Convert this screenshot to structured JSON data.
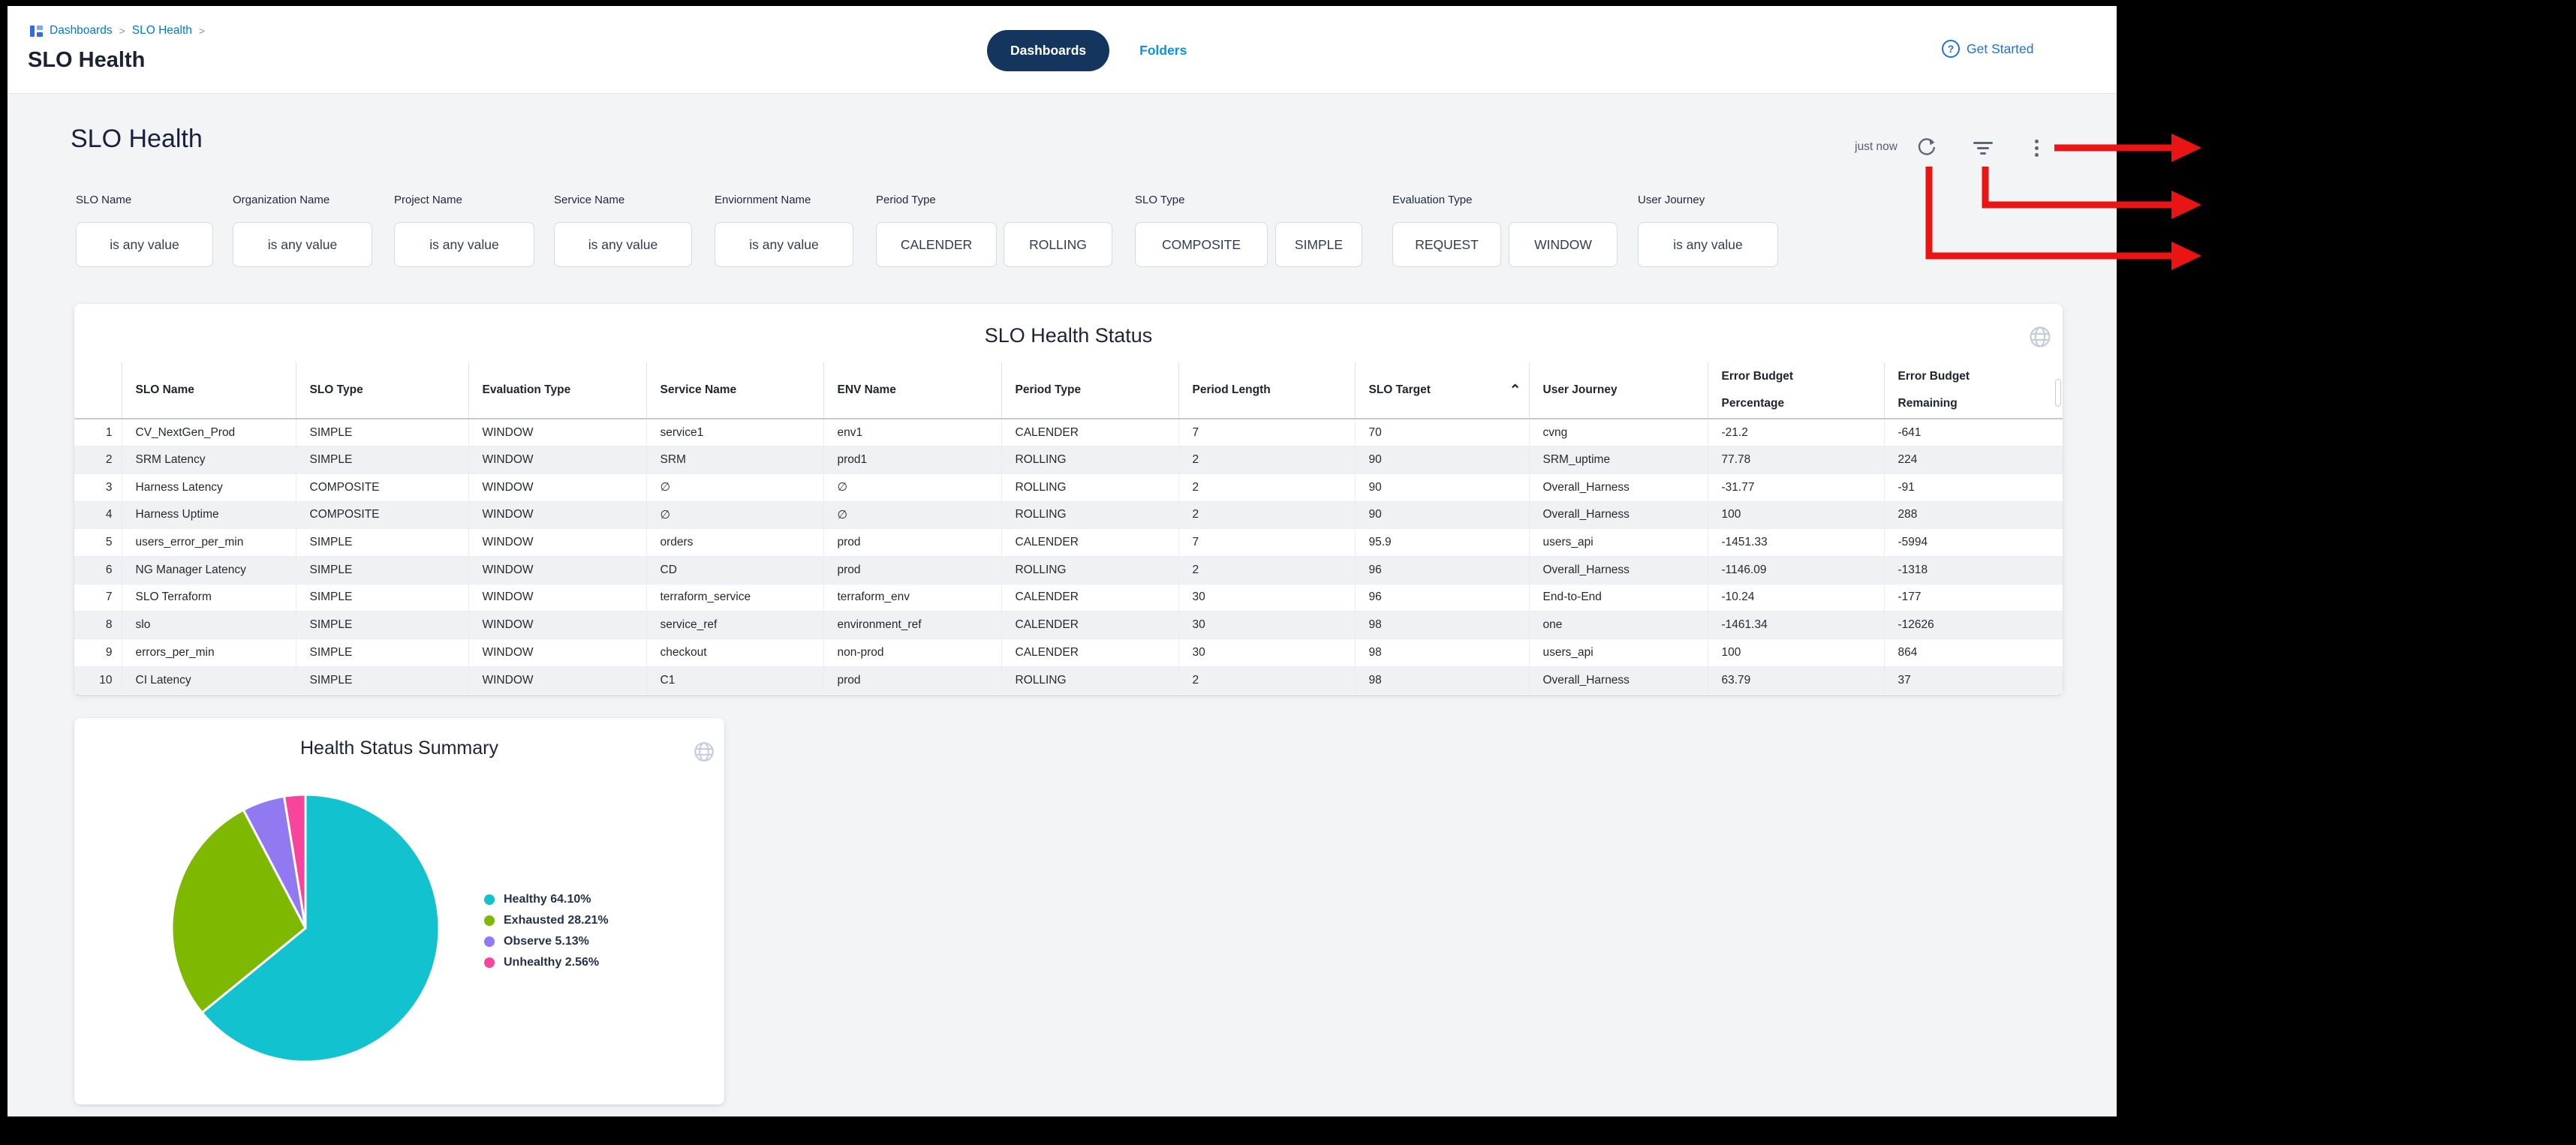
{
  "header": {
    "breadcrumb": [
      "Dashboards",
      "SLO Health"
    ],
    "breadcrumb_separator": ">",
    "title": "SLO Health",
    "tabs": [
      "Dashboards",
      "Folders"
    ],
    "help_glyph": "?",
    "get_started": "Get Started"
  },
  "toolbar": {
    "dashboard_title": "SLO Health",
    "refreshed_label": "just now"
  },
  "filters": [
    {
      "label": "SLO Name",
      "value": "is any value"
    },
    {
      "label": "Organization Name",
      "value": "is any value"
    },
    {
      "label": "Project Name",
      "value": "is any value"
    },
    {
      "label": "Service Name",
      "value": "is any value"
    },
    {
      "label": "Enviornment Name",
      "value": "is any value"
    },
    {
      "label": "Period Type",
      "options": [
        "CALENDER",
        "ROLLING"
      ]
    },
    {
      "label": "SLO Type",
      "options": [
        "COMPOSITE",
        "SIMPLE"
      ]
    },
    {
      "label": "Evaluation Type",
      "options": [
        "REQUEST",
        "WINDOW"
      ]
    },
    {
      "label": "User Journey",
      "value": "is any value"
    }
  ],
  "table": {
    "title": "SLO Health Status",
    "sort_caret": "⌃",
    "columns": [
      {
        "label": ""
      },
      {
        "label": "SLO Name"
      },
      {
        "label": "SLO Type"
      },
      {
        "label": "Evaluation Type"
      },
      {
        "label": "Service Name"
      },
      {
        "label": "ENV Name"
      },
      {
        "label": "Period Type"
      },
      {
        "label": "Period Length"
      },
      {
        "label": "SLO Target",
        "sorted": "asc"
      },
      {
        "label": "User Journey"
      },
      {
        "label": "Error Budget",
        "label2": "Percentage"
      },
      {
        "label": "Error Budget",
        "label2": "Remaining"
      }
    ],
    "rows": [
      [
        "1",
        "CV_NextGen_Prod",
        "SIMPLE",
        "WINDOW",
        "service1",
        "env1",
        "CALENDER",
        "7",
        "70",
        "cvng",
        "-21.2",
        "-641"
      ],
      [
        "2",
        "SRM Latency",
        "SIMPLE",
        "WINDOW",
        "SRM",
        "prod1",
        "ROLLING",
        "2",
        "90",
        "SRM_uptime",
        "77.78",
        "224"
      ],
      [
        "3",
        "Harness Latency",
        "COMPOSITE",
        "WINDOW",
        "∅",
        "∅",
        "ROLLING",
        "2",
        "90",
        "Overall_Harness",
        "-31.77",
        "-91"
      ],
      [
        "4",
        "Harness Uptime",
        "COMPOSITE",
        "WINDOW",
        "∅",
        "∅",
        "ROLLING",
        "2",
        "90",
        "Overall_Harness",
        "100",
        "288"
      ],
      [
        "5",
        "users_error_per_min",
        "SIMPLE",
        "WINDOW",
        "orders",
        "prod",
        "CALENDER",
        "7",
        "95.9",
        "users_api",
        "-1451.33",
        "-5994"
      ],
      [
        "6",
        "NG Manager Latency",
        "SIMPLE",
        "WINDOW",
        "CD",
        "prod",
        "ROLLING",
        "2",
        "96",
        "Overall_Harness",
        "-1146.09",
        "-1318"
      ],
      [
        "7",
        "SLO Terraform",
        "SIMPLE",
        "WINDOW",
        "terraform_service",
        "terraform_env",
        "CALENDER",
        "30",
        "96",
        "End-to-End",
        "-10.24",
        "-177"
      ],
      [
        "8",
        "slo",
        "SIMPLE",
        "WINDOW",
        "service_ref",
        "environment_ref",
        "CALENDER",
        "30",
        "98",
        "one",
        "-1461.34",
        "-12626"
      ],
      [
        "9",
        "errors_per_min",
        "SIMPLE",
        "WINDOW",
        "checkout",
        "non-prod",
        "CALENDER",
        "30",
        "98",
        "users_api",
        "100",
        "864"
      ],
      [
        "10",
        "CI Latency",
        "SIMPLE",
        "WINDOW",
        "C1",
        "prod",
        "ROLLING",
        "2",
        "98",
        "Overall_Harness",
        "63.79",
        "37"
      ]
    ]
  },
  "pie_card": {
    "title": "Health Status Summary"
  },
  "chart_data": {
    "type": "pie",
    "title": "Health Status Summary",
    "labels": [
      "Healthy",
      "Exhausted",
      "Observe",
      "Unhealthy"
    ],
    "values": [
      64.1,
      28.21,
      5.13,
      2.56
    ],
    "legend": [
      "Healthy 64.10%",
      "Exhausted 28.21%",
      "Observe 5.13%",
      "Unhealthy 2.56%"
    ],
    "colors": [
      "#12c2cf",
      "#7fb800",
      "#9179f2",
      "#f8459c"
    ],
    "start_angle_deg": 0,
    "direction": "clockwise",
    "legend_position": "right"
  },
  "colors": {
    "link_blue": "#0278d5",
    "tab_navy": "#14365e",
    "folders_blue": "#0a92e2",
    "annotation_red": "#e91414",
    "row_stripe": "#f0f1f3",
    "page_bg": "#f3f4f6"
  }
}
